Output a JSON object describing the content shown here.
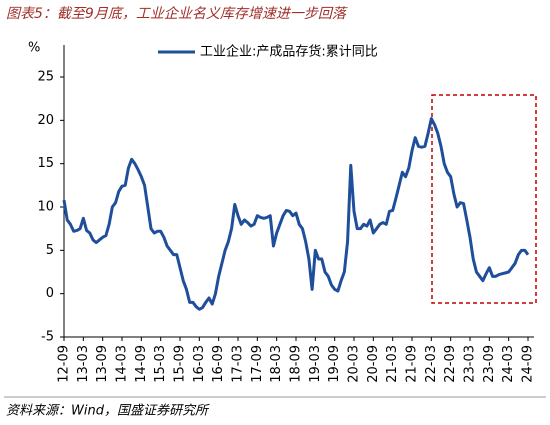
{
  "chart_data": {
    "type": "line",
    "title": "图表5：截至9月底，工业企业名义库存增速进一步回落",
    "y_label": "%",
    "source": "资料来源：Wind，国盛证券研究所",
    "categories": [
      "12-09",
      null,
      null,
      null,
      null,
      null,
      "13-03",
      null,
      null,
      null,
      null,
      null,
      "13-09",
      null,
      null,
      null,
      null,
      null,
      "14-03",
      null,
      null,
      null,
      null,
      null,
      "14-09",
      null,
      null,
      null,
      null,
      null,
      "15-03",
      null,
      null,
      null,
      null,
      null,
      "15-09",
      null,
      null,
      null,
      null,
      null,
      "16-03",
      null,
      null,
      null,
      null,
      null,
      "16-09",
      null,
      null,
      null,
      null,
      null,
      "17-03",
      null,
      null,
      null,
      null,
      null,
      "17-09",
      null,
      null,
      null,
      null,
      null,
      "18-03",
      null,
      null,
      null,
      null,
      null,
      "18-09",
      null,
      null,
      null,
      null,
      null,
      "19-03",
      null,
      null,
      null,
      null,
      null,
      "19-09",
      null,
      null,
      null,
      null,
      null,
      "20-03",
      null,
      null,
      null,
      null,
      null,
      "20-09",
      null,
      null,
      null,
      null,
      null,
      "21-03",
      null,
      null,
      null,
      null,
      null,
      "21-09",
      null,
      null,
      null,
      null,
      null,
      "22-03",
      null,
      null,
      null,
      null,
      null,
      "22-09",
      null,
      null,
      null,
      null,
      null,
      "23-03",
      null,
      null,
      null,
      null,
      null,
      "23-09",
      null,
      null,
      null,
      null,
      null,
      "24-03",
      null,
      null,
      null,
      null,
      null,
      "24-09"
    ],
    "series": [
      {
        "name": "工业企业:产成品存货:累计同比",
        "color": "#1f4e9b",
        "values": [
          10.8,
          8.5,
          8,
          7.2,
          7.3,
          7.5,
          8.7,
          7.3,
          7,
          6.2,
          5.9,
          6.2,
          6.5,
          6.7,
          8,
          10,
          10.5,
          11.8,
          12.4,
          12.5,
          14.5,
          15.5,
          15,
          14.3,
          13.5,
          12.5,
          10,
          7.5,
          7,
          7.2,
          7.2,
          6.5,
          5.5,
          5,
          4.5,
          4.5,
          3,
          1.5,
          0.5,
          -1,
          -1,
          -1.5,
          -1.8,
          -1.6,
          -1,
          -0.5,
          -1.2,
          0,
          2,
          3.5,
          5,
          6,
          7.5,
          10.3,
          9,
          8,
          8.5,
          8.2,
          7.8,
          8,
          9,
          8.8,
          8.7,
          8.8,
          9,
          5.5,
          7,
          8,
          9,
          9.6,
          9.5,
          9,
          9.3,
          8,
          7.5,
          6,
          4,
          0.5,
          5,
          4,
          4,
          2.5,
          2,
          1,
          0.5,
          0.3,
          1.5,
          2.5,
          6,
          14.8,
          9.5,
          7.5,
          7.5,
          8,
          7.8,
          8.5,
          7,
          7.5,
          8,
          8.2,
          8,
          9.5,
          9.6,
          11,
          12.5,
          14,
          13.5,
          14.5,
          16.5,
          18,
          17,
          16.9,
          17,
          18.5,
          20.2,
          19.5,
          18.5,
          17,
          15,
          14,
          13.5,
          11.5,
          10,
          10.5,
          10.4,
          8.5,
          6.5,
          4,
          2.5,
          2,
          1.5,
          2.3,
          3,
          2,
          2,
          2.2,
          2.3,
          2.4,
          2.5,
          3,
          3.5,
          4.5,
          5,
          5,
          4.5
        ]
      }
    ],
    "ylim": [
      -5,
      25
    ],
    "yticks": [
      -5,
      0,
      5,
      10,
      15,
      20,
      25
    ],
    "grid": false
  }
}
